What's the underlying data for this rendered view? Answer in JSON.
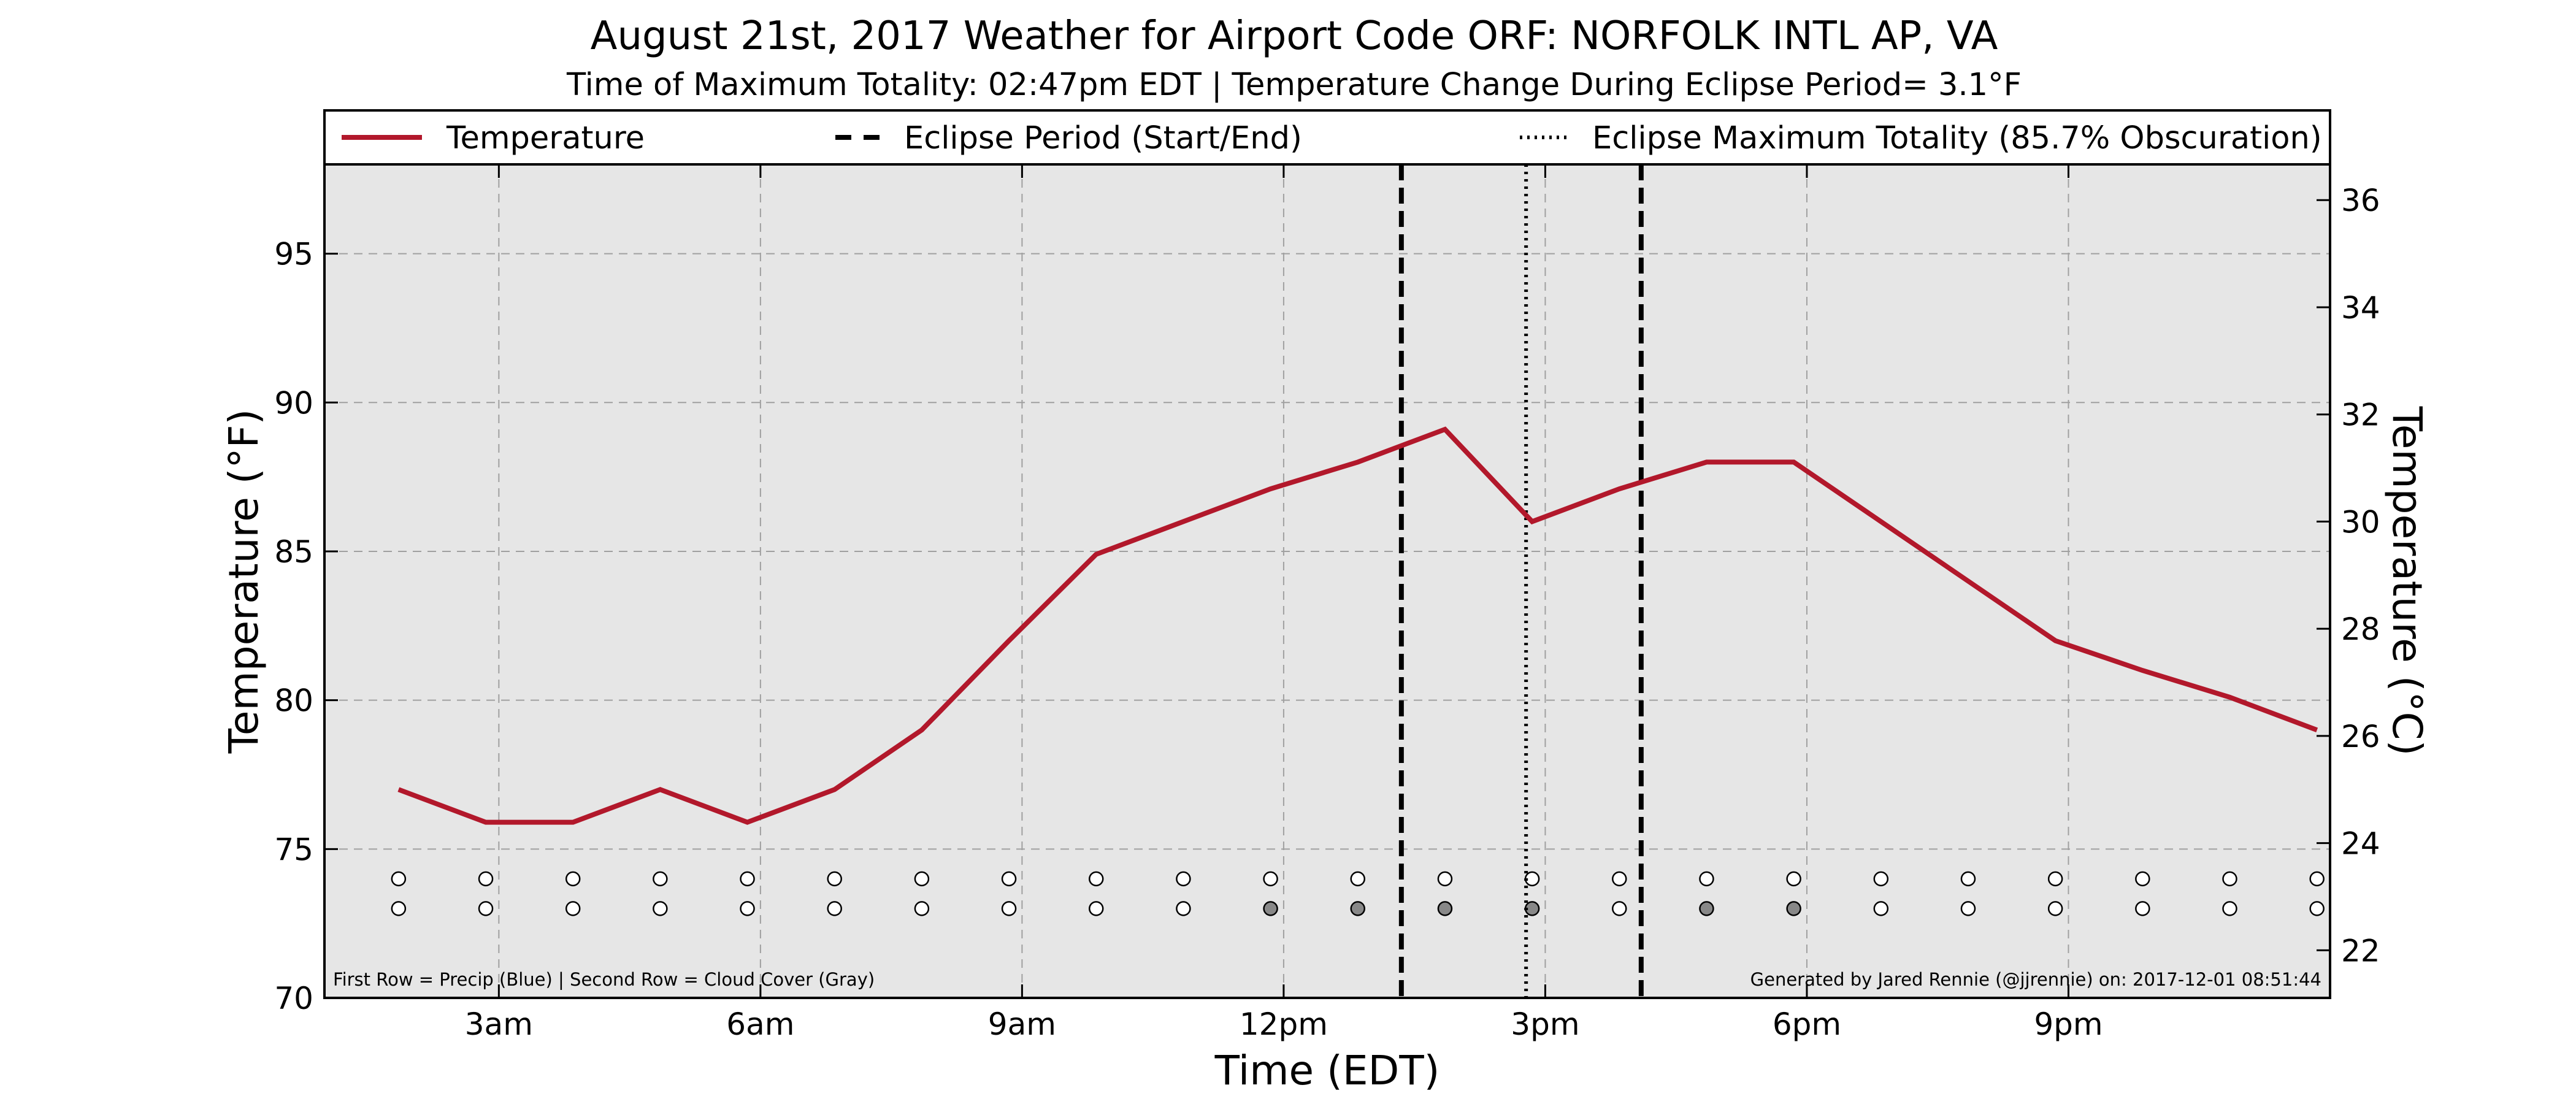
{
  "chart_data": {
    "type": "line",
    "title": "August 21st, 2017 Weather for Airport Code ORF: NORFOLK INTL AP, VA",
    "subtitle": "Time of Maximum Totality: 02:47pm EDT | Temperature Change During Eclipse Period= 3.1°F",
    "xlabel": "Time (EDT)",
    "ylabel_left": "Temperature (°F)",
    "ylabel_right": "Temperature (°C)",
    "xlim": [
      1.0,
      24.0
    ],
    "ylim": [
      70,
      98
    ],
    "ylim_celsius_ticks": [
      22,
      24,
      26,
      28,
      30,
      32,
      34,
      36
    ],
    "x_ticks": [
      3,
      6,
      9,
      12,
      15,
      18,
      21
    ],
    "x_tick_labels": [
      "3am",
      "6am",
      "9am",
      "12pm",
      "3pm",
      "6pm",
      "9pm"
    ],
    "y_ticks": [
      70,
      75,
      80,
      85,
      90,
      95
    ],
    "y_tick_labels": [
      "70",
      "75",
      "80",
      "85",
      "90",
      "95"
    ],
    "grid": true,
    "legend": {
      "placement": "top",
      "entries": [
        {
          "label": "Temperature",
          "style": "solid",
          "color": "#b2182b"
        },
        {
          "label": "Eclipse Period (Start/End)",
          "style": "dashed",
          "color": "#000000"
        },
        {
          "label": "Eclipse Maximum Totality (85.7% Obscuration)",
          "style": "dotted",
          "color": "#000000"
        }
      ]
    },
    "series": [
      {
        "name": "Temperature",
        "color": "#b2182b",
        "x": [
          1.85,
          2.85,
          3.85,
          4.85,
          5.85,
          6.85,
          7.85,
          8.85,
          9.85,
          10.85,
          11.85,
          12.85,
          13.85,
          14.85,
          15.85,
          16.85,
          17.85,
          18.85,
          19.85,
          20.85,
          21.85,
          22.85,
          23.85
        ],
        "values": [
          77,
          75.9,
          75.9,
          77,
          75.9,
          77,
          79,
          82,
          84.9,
          86,
          87.1,
          88,
          89.1,
          86,
          87.1,
          88,
          88,
          86,
          84,
          82,
          81,
          80.1,
          79
        ]
      }
    ],
    "eclipse_start": 13.35,
    "eclipse_end": 16.1,
    "eclipse_max": 14.78,
    "marker_x": [
      1.85,
      2.85,
      3.85,
      4.85,
      5.85,
      6.85,
      7.85,
      8.85,
      9.85,
      10.85,
      11.85,
      12.85,
      13.85,
      14.85,
      15.85,
      16.85,
      17.85,
      18.85,
      19.85,
      20.85,
      21.85,
      22.85,
      23.85
    ],
    "precip_row_value": 74,
    "cloud_row_value": 73,
    "precip_fill": [
      "#ffffff",
      "#ffffff",
      "#ffffff",
      "#ffffff",
      "#ffffff",
      "#ffffff",
      "#ffffff",
      "#ffffff",
      "#ffffff",
      "#ffffff",
      "#ffffff",
      "#ffffff",
      "#ffffff",
      "#ffffff",
      "#ffffff",
      "#ffffff",
      "#ffffff",
      "#ffffff",
      "#ffffff",
      "#ffffff",
      "#ffffff",
      "#ffffff",
      "#ffffff"
    ],
    "cloud_fill": [
      "#ffffff",
      "#ffffff",
      "#ffffff",
      "#ffffff",
      "#ffffff",
      "#ffffff",
      "#ffffff",
      "#ffffff",
      "#ffffff",
      "#ffffff",
      "#888888",
      "#888888",
      "#888888",
      "#888888",
      "#ffffff",
      "#888888",
      "#888888",
      "#ffffff",
      "#ffffff",
      "#ffffff",
      "#ffffff",
      "#ffffff",
      "#ffffff"
    ],
    "footnote_left": "First Row = Precip (Blue) | Second Row = Cloud Cover (Gray)",
    "footnote_right": "Generated by Jared Rennie (@jjrennie) on: 2017-12-01 08:51:44",
    "colors": {
      "plot_background": "#e6e6e6",
      "grid": "#a0a0a0",
      "temperature_line": "#b2182b"
    }
  }
}
